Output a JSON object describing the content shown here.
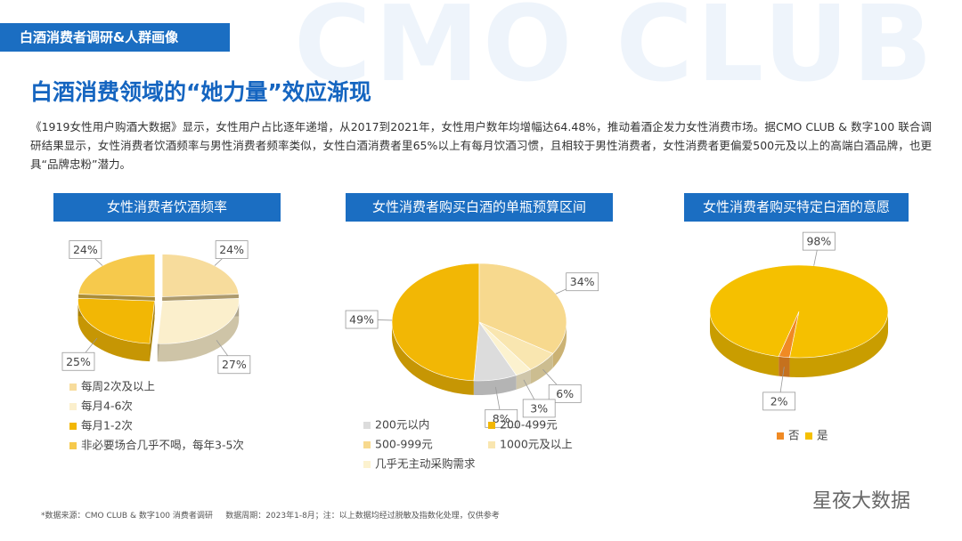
{
  "header_tag": "白酒消费者调研&人群画像",
  "watermark": "CMO CLUB",
  "title": "白酒消费领域的“她力量”效应渐现",
  "paragraph": "《1919女性用户购酒大数据》显示，女性用户占比逐年递增，从2017到2021年，女性用户数年均增幅达64.48%，推动着酒企发力女性消费市场。据CMO CLUB & 数字100 联合调研结果显示，女性消费者饮酒频率与男性消费者频率类似，女性白酒消费者里65%以上有每月饮酒习惯，且相较于男性消费者，女性消费者更偏爱500元及以上的高端白酒品牌，也更具“品牌忠粉”潜力。",
  "footer": "*数据来源：CMO CLUB & 数字100 消费者调研     数据周期：2023年1-8月；注：以上数据均经过脱敏及指数化处理，仅供参考",
  "logo": "星夜大数据",
  "chart_data": [
    {
      "type": "pie",
      "title": "女性消费者饮酒频率",
      "categories": [
        "每周2次及以上",
        "每月4-6次",
        "每月1-2次",
        "非必要场合几乎不喝，每年3-5次"
      ],
      "values": [
        24,
        27,
        25,
        24
      ],
      "value_labels": [
        "24%",
        "27%",
        "25%",
        "24%"
      ],
      "colors": [
        "#f7dc9c",
        "#fbefcc",
        "#f2b705",
        "#f6c94c"
      ]
    },
    {
      "type": "pie",
      "title": "女性消费者购买白酒的单瓶预算区间",
      "categories": [
        "200元以内",
        "200-499元",
        "500-999元",
        "1000元及以上",
        "几乎无主动采购需求"
      ],
      "values": [
        8,
        49,
        34,
        6,
        3
      ],
      "value_labels": [
        "8%",
        "49%",
        "34%",
        "6%",
        "3%"
      ],
      "colors": [
        "#dcdcdc",
        "#f2b705",
        "#f7d98e",
        "#f9e6b0",
        "#fcf2cf"
      ]
    },
    {
      "type": "pie",
      "title": "女性消费者购买特定白酒的意愿",
      "categories": [
        "否",
        "是"
      ],
      "values": [
        2,
        98
      ],
      "value_labels": [
        "2%",
        "98%"
      ],
      "colors": [
        "#f08a24",
        "#f5c000"
      ]
    }
  ]
}
